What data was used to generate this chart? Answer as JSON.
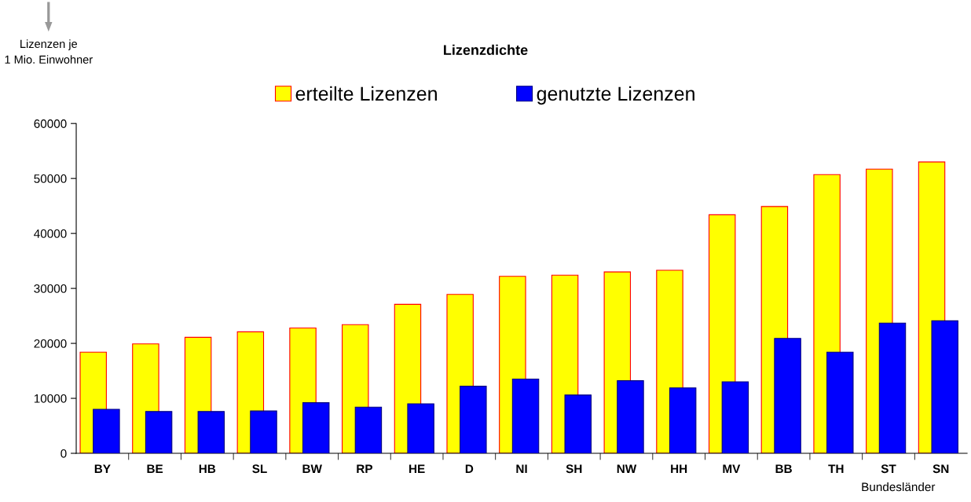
{
  "chart_data": {
    "type": "bar",
    "title": "Lizenzdichte",
    "ylabel": "Lizenzen je\n1 Mio. Einwohner",
    "xlabel": "Bundesländer",
    "categories": [
      "BY",
      "BE",
      "HB",
      "SL",
      "BW",
      "RP",
      "HE",
      "D",
      "NI",
      "SH",
      "NW",
      "HH",
      "MV",
      "BB",
      "TH",
      "ST",
      "SN"
    ],
    "series": [
      {
        "name": "erteilte Lizenzen",
        "color": "#ffff00",
        "values": [
          18400,
          19900,
          21100,
          22100,
          22800,
          23400,
          27100,
          28900,
          32200,
          32400,
          33000,
          33300,
          43400,
          44900,
          50700,
          51700,
          53000
        ]
      },
      {
        "name": "genutzte Lizenzen",
        "color": "#0000ff",
        "values": [
          8000,
          7600,
          7600,
          7700,
          9200,
          8400,
          9000,
          12200,
          13500,
          10600,
          13200,
          11900,
          13000,
          20900,
          18400,
          23700,
          24100
        ]
      }
    ],
    "ylim": [
      0,
      60000
    ],
    "yticks": [
      0,
      10000,
      20000,
      30000,
      40000,
      50000,
      60000
    ],
    "grid": false,
    "legend": "top"
  }
}
